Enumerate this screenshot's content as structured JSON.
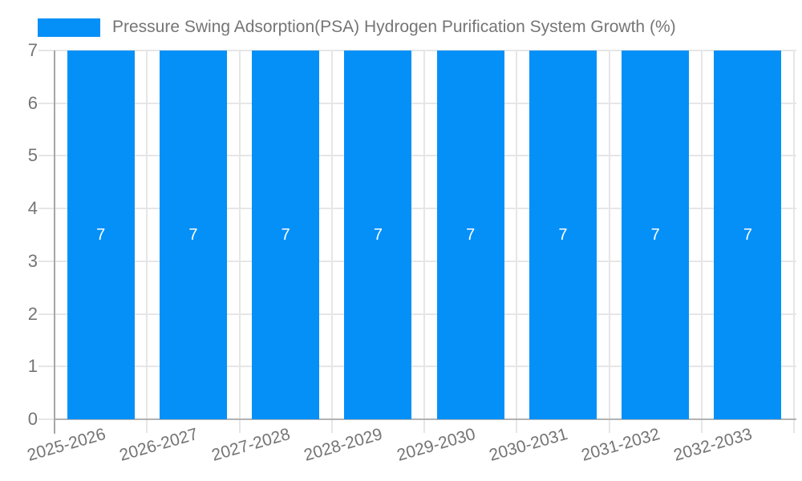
{
  "legend": {
    "label": "Pressure Swing Adsorption(PSA) Hydrogen Purification System Growth (%)"
  },
  "colors": {
    "bar": "#0590f8",
    "grid": "#e6e6e6",
    "axis": "#a6a6a6",
    "baseline": "#b3b3b3",
    "text": "#757575",
    "bar_label": "#ffffff",
    "background": "#ffffff"
  },
  "chart_data": {
    "type": "bar",
    "title": "",
    "xlabel": "",
    "ylabel": "",
    "categories": [
      "2025-2026",
      "2026-2027",
      "2027-2028",
      "2028-2029",
      "2029-2030",
      "2030-2031",
      "2031-2032",
      "2032-2033"
    ],
    "series": [
      {
        "name": "Pressure Swing Adsorption(PSA) Hydrogen Purification System Growth (%)",
        "values": [
          7,
          7,
          7,
          7,
          7,
          7,
          7,
          7
        ]
      }
    ],
    "bar_labels": [
      "7",
      "7",
      "7",
      "7",
      "7",
      "7",
      "7",
      "7"
    ],
    "ylim": [
      0,
      7
    ],
    "yticks": [
      0,
      1,
      2,
      3,
      4,
      5,
      6,
      7
    ],
    "grid": true,
    "legend_position": "top",
    "x_label_rotation_deg": -16
  }
}
